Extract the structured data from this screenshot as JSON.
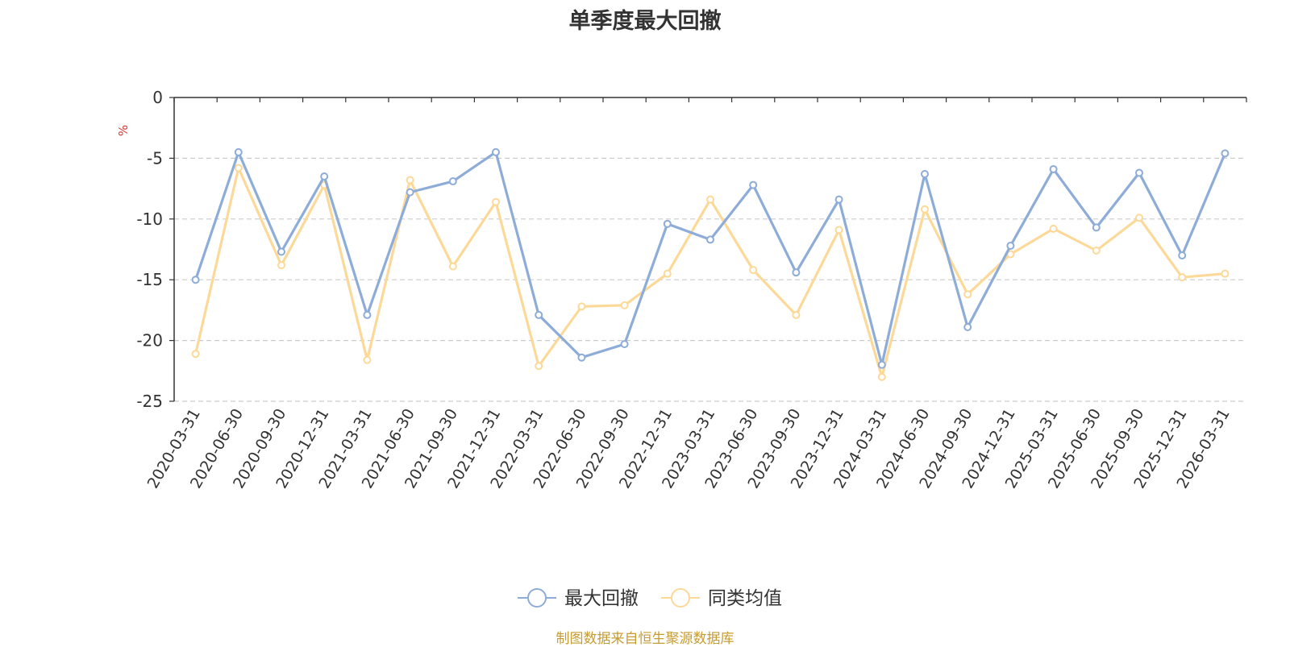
{
  "chart_data": {
    "type": "line",
    "title": "单季度最大回撤",
    "ylabel": "%",
    "xlabel": "",
    "ylim": [
      -25,
      0
    ],
    "yticks": [
      0,
      -5,
      -10,
      -15,
      -20,
      -25
    ],
    "categories": [
      "2020-03-31",
      "2020-06-30",
      "2020-09-30",
      "2020-12-31",
      "2021-03-31",
      "2021-06-30",
      "2021-09-30",
      "2021-12-31",
      "2022-03-31",
      "2022-06-30",
      "2022-09-30",
      "2022-12-31",
      "2023-03-31",
      "2023-06-30",
      "2023-09-30",
      "2023-12-31",
      "2024-03-31",
      "2024-06-30",
      "2024-09-30",
      "2024-12-31",
      "2025-03-31",
      "2025-06-30",
      "2025-09-30",
      "2025-12-31",
      "2026-03-31"
    ],
    "series": [
      {
        "name": "最大回撤",
        "color": "#8eacd8",
        "values": [
          -15.0,
          -4.5,
          -12.7,
          -6.5,
          -17.9,
          -7.8,
          -6.9,
          -4.5,
          -17.9,
          -21.4,
          -20.3,
          -10.4,
          -11.7,
          -7.2,
          -14.4,
          -8.4,
          -22.0,
          -6.3,
          -18.9,
          -12.2,
          -5.9,
          -10.7,
          -6.2,
          -13.0,
          -4.6
        ]
      },
      {
        "name": "同类均值",
        "color": "#fcd998",
        "values": [
          -21.1,
          -5.8,
          -13.8,
          -7.2,
          -21.6,
          -6.8,
          -13.9,
          -8.6,
          -22.1,
          -17.2,
          -17.1,
          -14.5,
          -8.4,
          -14.2,
          -17.9,
          -10.9,
          -23.0,
          -9.2,
          -16.2,
          -12.9,
          -10.8,
          -12.6,
          -9.9,
          -14.8,
          -14.5
        ]
      }
    ],
    "grid": true,
    "legend_position": "bottom-center"
  },
  "source_note": "制图数据来自恒生聚源数据库"
}
